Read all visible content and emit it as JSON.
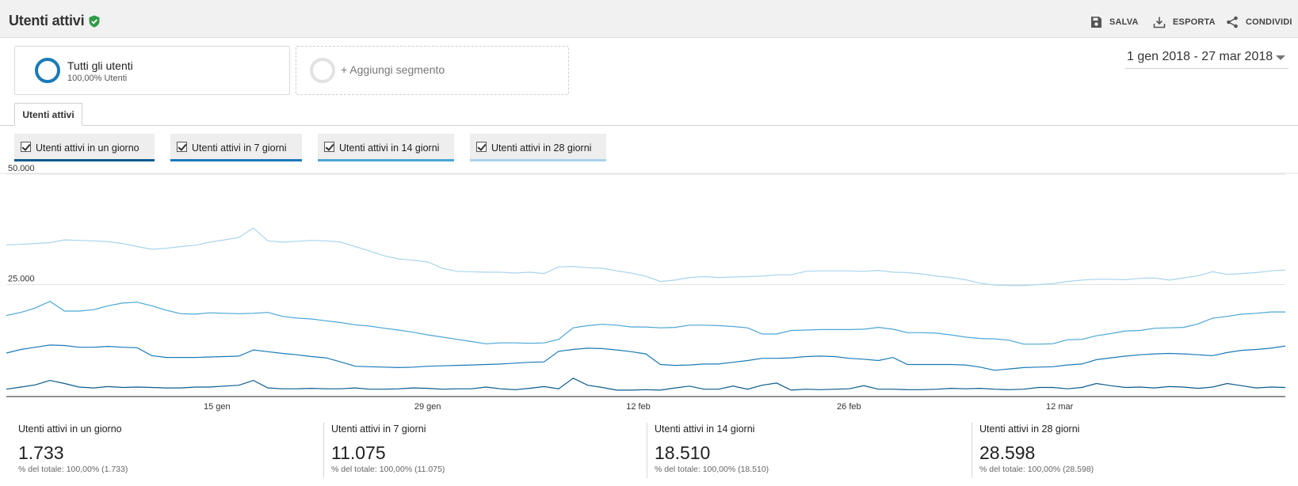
{
  "header": {
    "title": "Utenti attivi",
    "verified_icon": "shield-check-icon",
    "actions": [
      {
        "label": "SALVA",
        "icon": "save-icon"
      },
      {
        "label": "ESPORTA",
        "icon": "download-icon"
      },
      {
        "label": "CONDIVIDI",
        "icon": "share-icon"
      }
    ]
  },
  "segments": {
    "primary": {
      "name": "Tutti gli utenti",
      "sub": "100,00% Utenti"
    },
    "add_label": "+ Aggiungi segmento"
  },
  "date_range": "1 gen 2018 - 27 mar 2018",
  "tab": "Utenti attivi",
  "metrics": [
    {
      "label": "Utenti attivi in un giorno",
      "color": "#0b5a8c"
    },
    {
      "label": "Utenti attivi in 7 giorni",
      "color": "#1a7ab8"
    },
    {
      "label": "Utenti attivi in 14 giorni",
      "color": "#4aa6d6"
    },
    {
      "label": "Utenti attivi in 28 giorni",
      "color": "#a9d4ec"
    }
  ],
  "chart_data": {
    "type": "line",
    "x_start": "2018-01-01",
    "x_end": "2018-03-27",
    "x_tick_labels": [
      "15 gen",
      "29 gen",
      "12 feb",
      "26 feb",
      "12 mar"
    ],
    "x_tick_dates": [
      "2018-01-15",
      "2018-01-29",
      "2018-02-12",
      "2018-02-26",
      "2018-03-12"
    ],
    "y_tick_labels": [
      "50.000",
      "25.000"
    ],
    "y_tick_values": [
      50000,
      25000
    ],
    "ylim": [
      0,
      50000
    ],
    "grid": true,
    "series": [
      {
        "name": "Utenti attivi in un giorno",
        "color": "#0b5a8c",
        "values": [
          1300,
          1800,
          2300,
          3300,
          2600,
          1800,
          1600,
          1900,
          1700,
          1800,
          1700,
          1600,
          1600,
          1800,
          1800,
          2000,
          2200,
          3300,
          1600,
          1400,
          1400,
          1500,
          1400,
          1400,
          1600,
          1300,
          1300,
          1400,
          1600,
          1500,
          1300,
          1400,
          1400,
          1800,
          1400,
          1200,
          1500,
          1900,
          1400,
          3800,
          2200,
          1700,
          1100,
          1100,
          1200,
          1100,
          1600,
          2000,
          1300,
          1300,
          2000,
          1300,
          2200,
          2700,
          1100,
          1300,
          1200,
          1300,
          1400,
          2100,
          1300,
          1300,
          1200,
          1200,
          1300,
          1500,
          1400,
          1500,
          1300,
          1200,
          1300,
          1700,
          1700,
          1400,
          1700,
          2600,
          2100,
          1700,
          1800,
          1600,
          1900,
          1800,
          1500,
          1800,
          2600,
          2100,
          1600,
          1800,
          1700
        ]
      },
      {
        "name": "Utenti attivi in 7 giorni",
        "color": "#1a7ab8",
        "values": [
          9500,
          10300,
          10800,
          11300,
          11200,
          10800,
          10800,
          11000,
          10800,
          10700,
          8900,
          8500,
          8500,
          8500,
          8600,
          8700,
          8800,
          10200,
          9800,
          9400,
          9100,
          8700,
          8400,
          7500,
          6500,
          6400,
          6300,
          6200,
          6300,
          6500,
          6600,
          6700,
          6800,
          6900,
          7000,
          7200,
          7400,
          7500,
          9900,
          10300,
          10600,
          10500,
          10200,
          9800,
          9300,
          6900,
          6700,
          6800,
          7000,
          7000,
          7400,
          7800,
          8300,
          8300,
          8400,
          8700,
          8800,
          8700,
          8300,
          8100,
          7800,
          8500,
          6900,
          6900,
          6900,
          6900,
          6800,
          6300,
          5600,
          5900,
          6200,
          6300,
          6400,
          6800,
          7000,
          8000,
          8400,
          8800,
          9100,
          9300,
          9400,
          9300,
          9100,
          8900,
          9600,
          10100,
          10300,
          10600,
          11100
        ]
      },
      {
        "name": "Utenti attivi in 14 giorni",
        "color": "#4aa6d6",
        "values": [
          18000,
          18700,
          19700,
          21200,
          19000,
          19000,
          19300,
          20200,
          20800,
          21000,
          20200,
          19200,
          18400,
          18300,
          18600,
          18500,
          18400,
          18500,
          18700,
          17800,
          17400,
          17200,
          16800,
          16400,
          15900,
          15600,
          15100,
          14700,
          14200,
          13600,
          13100,
          12600,
          12100,
          11600,
          11800,
          11800,
          11700,
          11800,
          12600,
          15200,
          15700,
          16000,
          15800,
          15400,
          15400,
          15200,
          15300,
          15800,
          15800,
          15700,
          15500,
          15200,
          13800,
          13800,
          14600,
          14700,
          14800,
          14800,
          14800,
          14900,
          15300,
          14900,
          14100,
          14100,
          14000,
          13600,
          13100,
          12800,
          12700,
          12400,
          11500,
          11500,
          11600,
          12500,
          12600,
          13400,
          13900,
          14500,
          14600,
          15100,
          15200,
          15300,
          16100,
          17400,
          17800,
          18300,
          18500,
          18800,
          18800
        ]
      },
      {
        "name": "Utenti attivi in 28 giorni",
        "color": "#a9d4ec",
        "values": [
          34000,
          34100,
          34300,
          34500,
          35100,
          35000,
          34900,
          34700,
          34300,
          33600,
          33000,
          33200,
          33600,
          33900,
          34600,
          35100,
          35700,
          37800,
          34900,
          34600,
          34800,
          35000,
          34900,
          34600,
          33600,
          32600,
          31500,
          30800,
          30500,
          30100,
          28700,
          28000,
          27900,
          27800,
          27800,
          27600,
          27800,
          27500,
          29000,
          29100,
          28800,
          28700,
          28100,
          27600,
          26900,
          25700,
          26000,
          26600,
          26800,
          26600,
          26700,
          26800,
          26900,
          27200,
          27200,
          28000,
          28100,
          28100,
          28100,
          28000,
          28200,
          27800,
          27700,
          27400,
          26900,
          26600,
          26100,
          25300,
          24900,
          24800,
          24800,
          25000,
          25200,
          25700,
          26000,
          26200,
          26200,
          26100,
          26400,
          26500,
          26000,
          26500,
          27000,
          27900,
          27300,
          27500,
          27700,
          28100,
          28300
        ]
      }
    ]
  },
  "summary": [
    {
      "label": "Utenti attivi in un giorno",
      "value": "1.733",
      "sub": "% del totale: 100,00% (1.733)"
    },
    {
      "label": "Utenti attivi in 7 giorni",
      "value": "11.075",
      "sub": "% del totale: 100,00% (11.075)"
    },
    {
      "label": "Utenti attivi in 14 giorni",
      "value": "18.510",
      "sub": "% del totale: 100,00% (18.510)"
    },
    {
      "label": "Utenti attivi in 28 giorni",
      "value": "28.598",
      "sub": "% del totale: 100,00% (28.598)"
    }
  ]
}
